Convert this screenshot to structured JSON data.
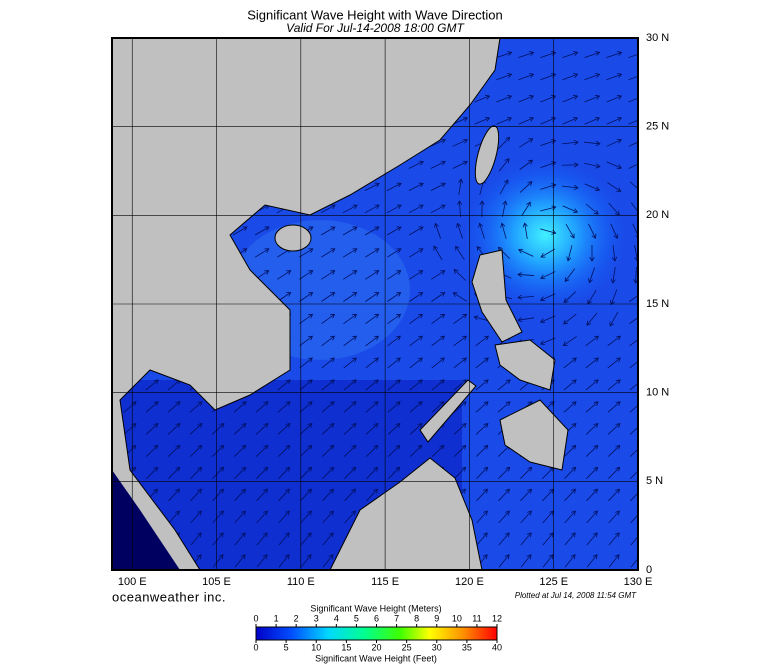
{
  "map": {
    "title": "Significant Wave Height with Wave Direction",
    "subtitle": "Valid For Jul-14-2008 18:00 GMT",
    "credit": "oceanweather inc.",
    "plotted": "Plotted at Jul 14, 2008 11:54 GMT",
    "xlim": [
      98.8,
      130
    ],
    "ylim": [
      0,
      30
    ],
    "xticks": [
      {
        "value": 100,
        "label": "100 E"
      },
      {
        "value": 105,
        "label": "105 E"
      },
      {
        "value": 110,
        "label": "110 E"
      },
      {
        "value": 115,
        "label": "115 E"
      },
      {
        "value": 120,
        "label": "120 E"
      },
      {
        "value": 125,
        "label": "125 E"
      },
      {
        "value": 130,
        "label": "130 E"
      }
    ],
    "yticks": [
      {
        "value": 0,
        "label": "0"
      },
      {
        "value": 5,
        "label": "5 N"
      },
      {
        "value": 10,
        "label": "10 N"
      },
      {
        "value": 15,
        "label": "15 N"
      },
      {
        "value": 20,
        "label": "20 N"
      },
      {
        "value": 25,
        "label": "25 N"
      },
      {
        "value": 30,
        "label": "30 N"
      }
    ],
    "colorbar": {
      "meters_label": "Significant Wave Height (Meters)",
      "feet_label": "Significant Wave Height (Feet)",
      "meters_lim": [
        0,
        12
      ],
      "meters_ticks": [
        0,
        1,
        2,
        3,
        4,
        5,
        6,
        7,
        8,
        9,
        10,
        11,
        12
      ],
      "feet_lim": [
        0,
        40
      ],
      "feet_ticks": [
        0,
        5,
        10,
        15,
        20,
        25,
        30,
        35,
        40
      ]
    }
  }
}
